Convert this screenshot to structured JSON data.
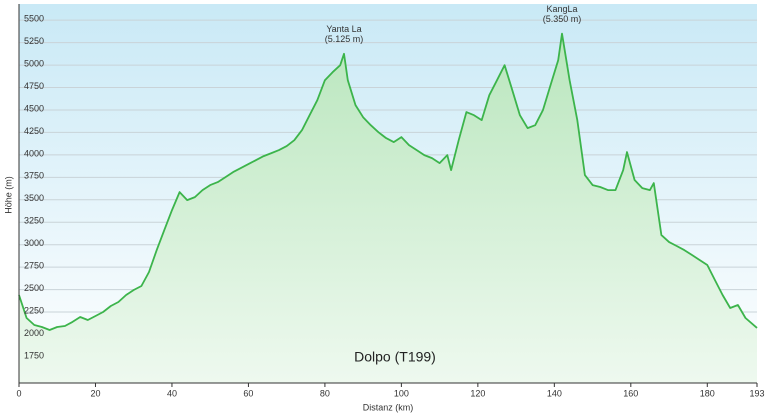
{
  "chart_data": {
    "type": "area",
    "title": "Dolpo (T199)",
    "x_label": "Distanz  (km)",
    "y_label": "Höhe (m)",
    "annotations": [
      {
        "lines": [
          "Yanta La",
          "(5.125 m)"
        ],
        "x": 85,
        "y": 5125
      },
      {
        "lines": [
          "KangLa",
          "(5.350 m)"
        ],
        "x": 142,
        "y": 5350
      }
    ],
    "xlim": [
      0,
      193
    ],
    "xticks": [
      0,
      20,
      40,
      60,
      80,
      100,
      120,
      140,
      160,
      180,
      193
    ],
    "ylim": [
      1460,
      5680
    ],
    "yticks": [
      1750,
      2000,
      2250,
      2500,
      2750,
      3000,
      3250,
      3500,
      3750,
      4000,
      4250,
      4500,
      4750,
      5000,
      5250,
      5500
    ],
    "grid": true,
    "x": [
      0,
      2,
      4,
      6,
      8,
      10,
      12,
      14,
      16,
      18,
      20,
      22,
      24,
      26,
      28,
      30,
      32,
      34,
      36,
      38,
      40,
      42,
      44,
      46,
      48,
      50,
      52,
      54,
      56,
      58,
      60,
      62,
      64,
      66,
      68,
      70,
      72,
      74,
      76,
      78,
      80,
      82,
      84,
      85,
      86,
      88,
      90,
      92,
      94,
      96,
      98,
      100,
      102,
      104,
      106,
      108,
      110,
      112,
      113,
      115,
      117,
      119,
      121,
      123,
      125,
      127,
      129,
      131,
      133,
      135,
      137,
      139,
      141,
      142,
      144,
      146,
      148,
      150,
      152,
      154,
      156,
      158,
      159,
      161,
      163,
      165,
      166,
      168,
      170,
      172,
      174,
      176,
      178,
      180,
      182,
      184,
      186,
      188,
      190,
      193
    ],
    "series": [
      {
        "name": "Höhe",
        "color": "#3cb44b",
        "values": [
          2440,
          2184,
          2106,
          2084,
          2050,
          2084,
          2095,
          2140,
          2195,
          2162,
          2206,
          2250,
          2317,
          2362,
          2440,
          2495,
          2540,
          2696,
          2940,
          3163,
          3385,
          3586,
          3497,
          3530,
          3608,
          3664,
          3697,
          3753,
          3808,
          3853,
          3897,
          3942,
          3986,
          4020,
          4053,
          4098,
          4164,
          4276,
          4442,
          4609,
          4832,
          4921,
          4999,
          5125,
          4832,
          4554,
          4420,
          4331,
          4253,
          4187,
          4142,
          4198,
          4109,
          4053,
          3998,
          3964,
          3909,
          3998,
          3831,
          4164,
          4476,
          4442,
          4387,
          4665,
          4832,
          4999,
          4720,
          4442,
          4298,
          4331,
          4498,
          4776,
          5054,
          5350,
          4832,
          4387,
          3775,
          3664,
          3642,
          3608,
          3608,
          3831,
          4031,
          3720,
          3630,
          3608,
          3686,
          3107,
          3029,
          2985,
          2940,
          2885,
          2829,
          2774,
          2607,
          2440,
          2295,
          2329,
          2184,
          2073
        ]
      }
    ]
  }
}
